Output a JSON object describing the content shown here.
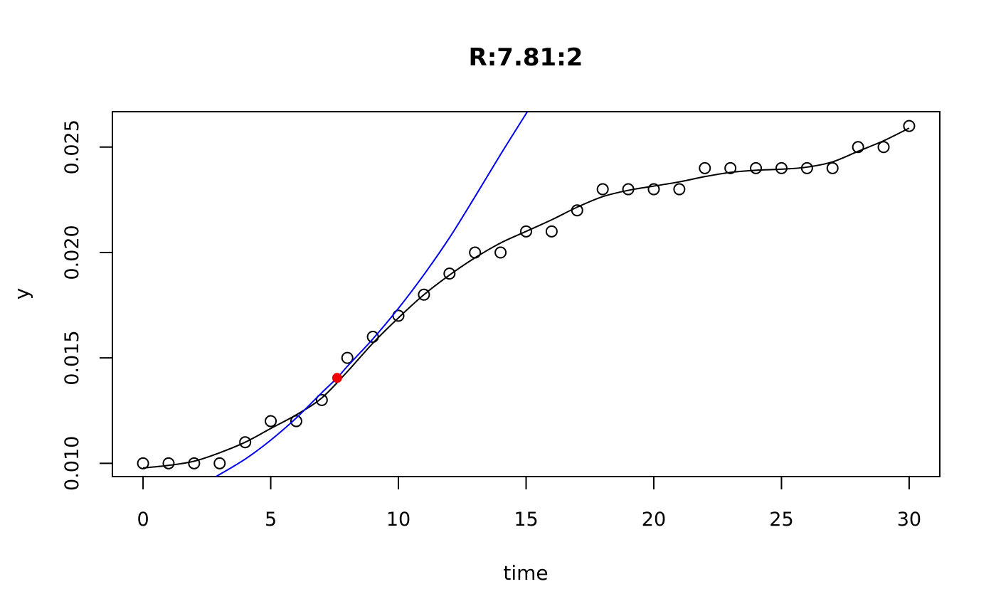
{
  "chart_data": {
    "type": "scatter",
    "title": "R:7.81:2",
    "xlabel": "time",
    "ylabel": "y",
    "xlim": [
      -1.2,
      31.2
    ],
    "ylim": [
      0.00937,
      0.02668
    ],
    "x_ticks": [
      0,
      5,
      10,
      15,
      20,
      25,
      30
    ],
    "x_tick_labels": [
      "0",
      "5",
      "10",
      "15",
      "20",
      "25",
      "30"
    ],
    "y_ticks": [
      0.01,
      0.015,
      0.02,
      0.025
    ],
    "y_tick_labels": [
      "0.010",
      "0.015",
      "0.020",
      "0.025"
    ],
    "grid": false,
    "series": [
      {
        "style": "open-circles",
        "color": "#000000",
        "x": [
          0,
          1,
          2,
          3,
          4,
          5,
          6,
          7,
          8,
          9,
          10,
          11,
          12,
          13,
          14,
          15,
          16,
          17,
          18,
          19,
          20,
          21,
          22,
          23,
          24,
          25,
          26,
          27,
          28,
          29,
          30
        ],
        "y": [
          0.01,
          0.01,
          0.01,
          0.01,
          0.011,
          0.012,
          0.012,
          0.013,
          0.015,
          0.016,
          0.017,
          0.018,
          0.019,
          0.02,
          0.02,
          0.021,
          0.021,
          0.022,
          0.023,
          0.023,
          0.023,
          0.023,
          0.024,
          0.024,
          0.024,
          0.024,
          0.024,
          0.024,
          0.025,
          0.025,
          0.026
        ]
      },
      {
        "style": "smooth-line",
        "color": "#000000",
        "x": [
          0,
          1,
          2,
          3,
          4,
          5,
          6,
          7,
          8,
          9,
          10,
          11,
          12,
          13,
          14,
          15,
          16,
          17,
          18,
          19,
          20,
          21,
          22,
          23,
          24,
          25,
          26,
          27,
          28,
          29,
          30
        ],
        "y": [
          0.00978,
          0.0099,
          0.0101,
          0.0105,
          0.011,
          0.01165,
          0.0123,
          0.0131,
          0.01435,
          0.0157,
          0.0169,
          0.018,
          0.01893,
          0.01975,
          0.02045,
          0.021,
          0.02155,
          0.02215,
          0.02265,
          0.02295,
          0.02315,
          0.02335,
          0.0236,
          0.0238,
          0.0239,
          0.02395,
          0.02405,
          0.0243,
          0.0248,
          0.0253,
          0.0259
        ]
      },
      {
        "style": "line",
        "color": "#0000ee",
        "x": [
          2.8,
          4,
          5,
          6,
          7,
          7.6,
          8,
          9,
          10,
          11,
          12,
          13,
          14,
          15.05
        ],
        "y": [
          0.00933,
          0.0102,
          0.0111,
          0.01215,
          0.01335,
          0.01405,
          0.0146,
          0.0159,
          0.01735,
          0.01895,
          0.0207,
          0.02265,
          0.02465,
          0.02668
        ]
      },
      {
        "style": "filled-point",
        "color": "#ee0000",
        "x": [
          7.6
        ],
        "y": [
          0.01405
        ]
      }
    ]
  }
}
